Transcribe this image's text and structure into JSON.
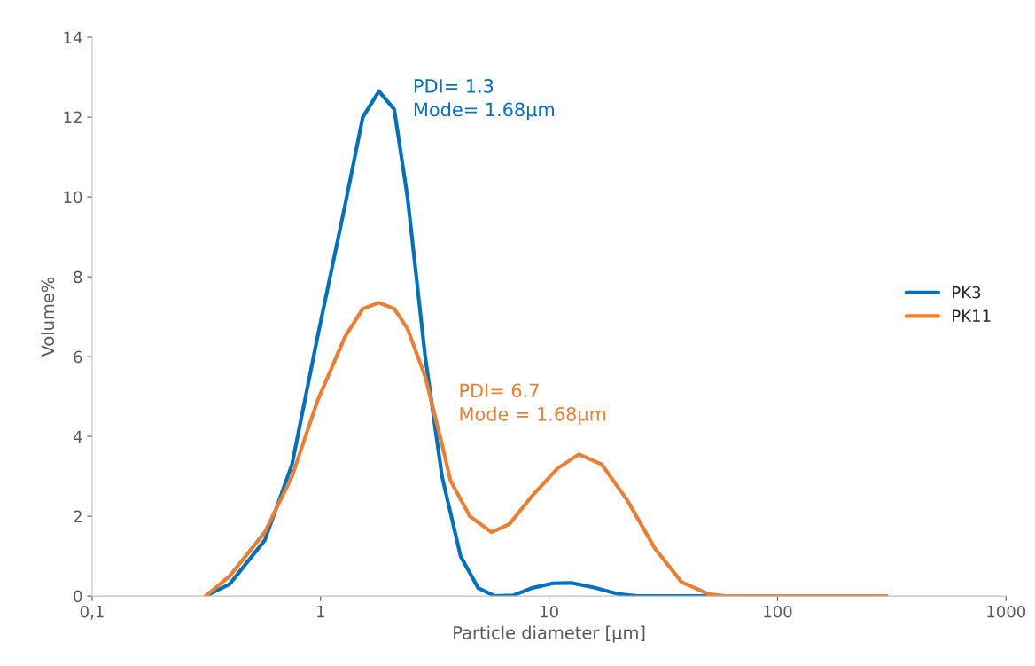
{
  "chart_data": {
    "type": "line",
    "xlabel": "Particle diameter [µm]",
    "ylabel": "Volume%",
    "log": "x",
    "xlim": [
      0.1,
      1000
    ],
    "xticks": [
      {
        "value": 0.1,
        "label": "0,1"
      },
      1,
      10,
      100,
      1000
    ],
    "ylim": [
      0,
      14
    ],
    "yticks": [
      0,
      2,
      4,
      6,
      8,
      10,
      12,
      14
    ],
    "grid": false,
    "legend": "right",
    "marker": "none",
    "line_style": "solid",
    "series": [
      {
        "name": "PK3",
        "color": "#0070c0",
        "x": [
          0.314,
          0.4,
          0.57,
          0.75,
          0.97,
          1.28,
          1.53,
          1.8,
          2.1,
          2.4,
          2.87,
          3.4,
          4.1,
          4.9,
          5.8,
          7.0,
          8.4,
          10.4,
          12.5,
          15.6,
          20.2,
          24.2,
          50,
          100,
          300
        ],
        "values": [
          0,
          0.3,
          1.4,
          3.3,
          6.5,
          9.8,
          12.0,
          12.65,
          12.2,
          10.0,
          6.0,
          3.0,
          1.0,
          0.2,
          0,
          0.02,
          0.2,
          0.32,
          0.33,
          0.22,
          0.05,
          0,
          0,
          0,
          0
        ]
      },
      {
        "name": "PK11",
        "color": "#ed7d31",
        "x": [
          0.314,
          0.4,
          0.57,
          0.75,
          0.97,
          1.28,
          1.53,
          1.8,
          2.1,
          2.4,
          2.87,
          3.4,
          3.7,
          4.5,
          5.6,
          6.7,
          8.4,
          10.9,
          13.5,
          17,
          22,
          29,
          38,
          50,
          59,
          100,
          300
        ],
        "values": [
          0,
          0.5,
          1.6,
          3.0,
          4.9,
          6.5,
          7.2,
          7.35,
          7.2,
          6.7,
          5.5,
          3.8,
          2.9,
          2.0,
          1.6,
          1.8,
          2.5,
          3.2,
          3.55,
          3.3,
          2.4,
          1.2,
          0.35,
          0.05,
          0,
          0,
          0
        ]
      }
    ],
    "annotations": [
      "PDI= 1.3\nMode= 1.68µm",
      "PDI= 6.7\nMode = 1.68µm"
    ]
  }
}
